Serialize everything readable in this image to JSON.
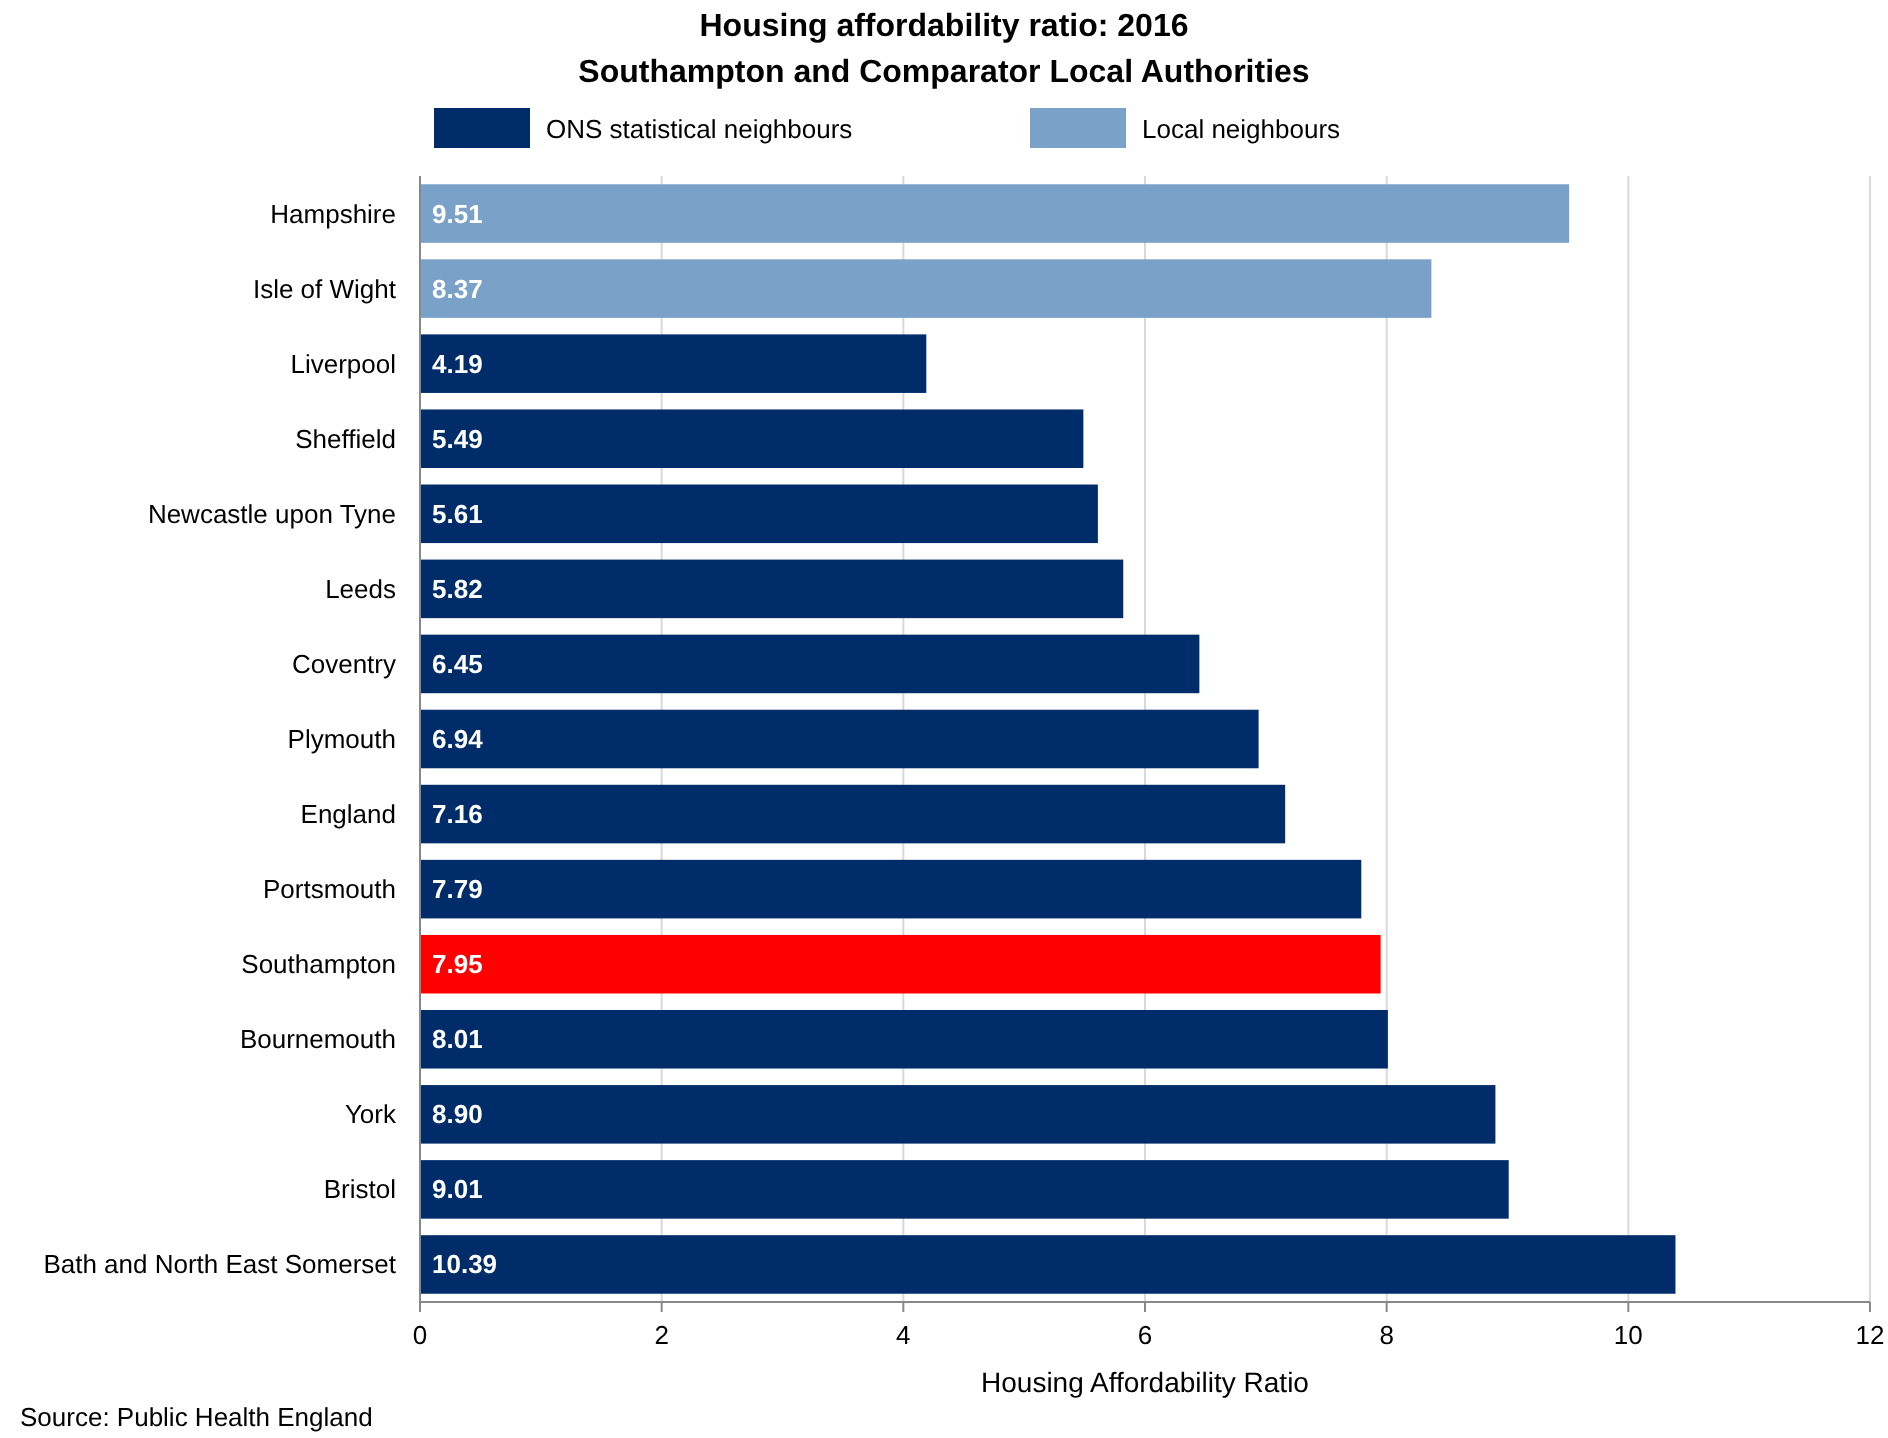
{
  "chart_data": {
    "type": "bar",
    "orientation": "horizontal",
    "title": "Housing affordability ratio: 2016",
    "subtitle": "Southampton and Comparator Local Authorities",
    "xlabel": "Housing Affordability Ratio",
    "categories": [
      "Hampshire",
      "Isle of Wight",
      "Liverpool",
      "Sheffield",
      "Newcastle upon Tyne",
      "Leeds",
      "Coventry",
      "Plymouth",
      "England",
      "Portsmouth",
      "Southampton",
      "Bournemouth",
      "York",
      "Bristol",
      "Bath and North East Somerset"
    ],
    "series": [
      {
        "name": "ONS statistical neighbours",
        "color": "#002d6a",
        "values": [
          null,
          null,
          4.19,
          5.49,
          5.61,
          5.82,
          6.45,
          6.94,
          7.16,
          7.79,
          7.95,
          8.01,
          8.9,
          9.01,
          10.39
        ],
        "value_labels": [
          null,
          null,
          "4.19",
          "5.49",
          "5.61",
          "5.82",
          "6.45",
          "6.94",
          "7.16",
          "7.79",
          "7.95",
          "8.01",
          "8.90",
          "9.01",
          "10.39"
        ],
        "colors": [
          null,
          null,
          "#002d6a",
          "#002d6a",
          "#002d6a",
          "#002d6a",
          "#002d6a",
          "#002d6a",
          "#002d6a",
          "#002d6a",
          "#ff0000",
          "#002d6a",
          "#002d6a",
          "#002d6a",
          "#002d6a"
        ]
      },
      {
        "name": "Local neighbours",
        "color": "#7aa1c8",
        "values": [
          9.51,
          8.37,
          null,
          null,
          null,
          null,
          null,
          null,
          null,
          null,
          null,
          null,
          null,
          null,
          null
        ],
        "value_labels": [
          "9.51",
          "8.37",
          null,
          null,
          null,
          null,
          null,
          null,
          null,
          null,
          null,
          null,
          null,
          null,
          null
        ]
      }
    ],
    "xlim": [
      0,
      12
    ],
    "xticks": [
      0,
      2,
      4,
      6,
      8,
      10,
      12
    ],
    "grid": "x",
    "legend": "top",
    "annotations": [
      "Source: Public Health England"
    ]
  }
}
